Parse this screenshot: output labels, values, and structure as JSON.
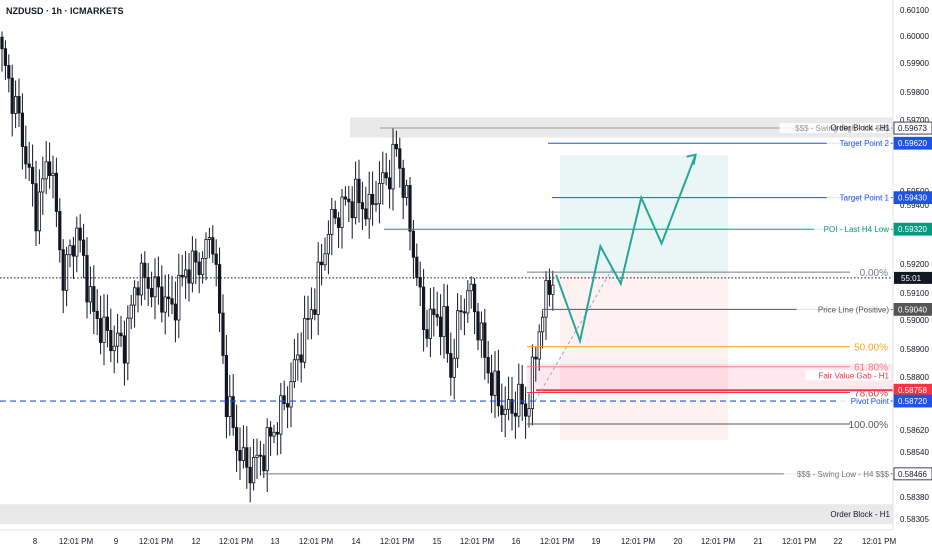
{
  "header": {
    "title": "NZDUSD · 1h · ICMARKETS"
  },
  "chart_data": {
    "type": "candlestick",
    "symbol": "NZDUSD",
    "timeframe": "1h",
    "broker": "ICMARKETS",
    "ylim": [
      0.5827,
      0.6012
    ],
    "y_ticks": [
      "0.60100",
      "0.60000",
      "0.59900",
      "0.59800",
      "0.59700",
      "0.59500",
      "0.59400",
      "0.59200",
      "0.59100",
      "0.59000",
      "0.58900",
      "0.58800",
      "0.58620",
      "0.58540",
      "0.58380",
      "0.58305"
    ],
    "x_ticks": [
      "8",
      "12:01 PM",
      "9",
      "12:01 PM",
      "12",
      "12:01 PM",
      "13",
      "12:01 PM",
      "14",
      "12:01 PM",
      "15",
      "12:01 PM",
      "16",
      "12:01 PM",
      "19",
      "12:01 PM",
      "20",
      "12:01 PM",
      "21",
      "12:01 PM",
      "22",
      "12:01 PM"
    ],
    "x_tick_index": [
      0,
      12,
      24,
      36,
      48,
      60,
      72,
      84,
      96,
      108,
      120,
      132,
      144,
      156,
      168,
      180,
      192,
      204,
      216,
      228,
      240,
      252
    ],
    "price_waypoints": [
      [
        0,
        0.5992
      ],
      [
        5,
        0.597
      ],
      [
        10,
        0.5938
      ],
      [
        14,
        0.5958
      ],
      [
        18,
        0.5915
      ],
      [
        22,
        0.5932
      ],
      [
        27,
        0.5902
      ],
      [
        32,
        0.5893
      ],
      [
        36,
        0.5892
      ],
      [
        40,
        0.5916
      ],
      [
        46,
        0.591
      ],
      [
        50,
        0.5904
      ],
      [
        54,
        0.5918
      ],
      [
        58,
        0.592
      ],
      [
        62,
        0.593
      ],
      [
        66,
        0.5873
      ],
      [
        69,
        0.5857
      ],
      [
        72,
        0.5848
      ],
      [
        76,
        0.5852
      ],
      [
        80,
        0.5862
      ],
      [
        84,
        0.5874
      ],
      [
        88,
        0.5892
      ],
      [
        92,
        0.5908
      ],
      [
        96,
        0.5932
      ],
      [
        100,
        0.594
      ],
      [
        104,
        0.5943
      ],
      [
        108,
        0.5938
      ],
      [
        110,
        0.5945
      ],
      [
        114,
        0.5952
      ],
      [
        116,
        0.596
      ],
      [
        118,
        0.5948
      ],
      [
        121,
        0.5925
      ],
      [
        124,
        0.5898
      ],
      [
        128,
        0.5902
      ],
      [
        130,
        0.5898
      ],
      [
        132,
        0.5882
      ],
      [
        135,
        0.5905
      ],
      [
        138,
        0.591
      ],
      [
        141,
        0.5893
      ],
      [
        144,
        0.5878
      ],
      [
        147,
        0.587
      ],
      [
        149,
        0.5868
      ],
      [
        152,
        0.5873
      ],
      [
        154,
        0.5868
      ],
      [
        156,
        0.588
      ],
      [
        158,
        0.5898
      ],
      [
        160,
        0.5908
      ],
      [
        162,
        0.5916
      ]
    ],
    "levels": [
      {
        "name": "$$$ - Swing High - H4 $$$",
        "price": 0.59673,
        "label": "0.59673",
        "color": "#999999"
      },
      {
        "name": "Target Point 2",
        "price": 0.5962,
        "label": "0.59620",
        "color": "#1e53e5"
      },
      {
        "name": "Target Point 1",
        "price": 0.5943,
        "label": "0.59430",
        "color": "#1e53e5"
      },
      {
        "name": "POI - Last H4 Low",
        "price": 0.5932,
        "label": "0.59320",
        "color": "#089981"
      },
      {
        "name": "Price Line (Positive)",
        "price": 0.5904,
        "label": "0.59040",
        "color": "#555555"
      },
      {
        "name": "Fair Value Gab - H1",
        "price": 0.58758,
        "label": "0.58758",
        "color": "#f23645"
      },
      {
        "name": "Pivot Point",
        "price": 0.5872,
        "label": "0.58720",
        "color": "#1e53e5"
      },
      {
        "name": "$$$ - Swing Low - H4 $$$",
        "price": 0.58466,
        "label": "0.58466",
        "color": "#777777"
      }
    ],
    "current_price_label": "55:01",
    "current_price": 0.5915,
    "fib_levels": [
      {
        "label": "0.00%",
        "price": 0.5917,
        "color": "#787b86"
      },
      {
        "label": "50.00%",
        "price": 0.5891,
        "color": "#f5a623"
      },
      {
        "label": "61.80%",
        "price": 0.5884,
        "color": "#f77c80"
      },
      {
        "label": "78.60%",
        "price": 0.5875,
        "color": "#f23645"
      },
      {
        "label": "100.00%",
        "price": 0.5864,
        "color": "#555555"
      }
    ],
    "order_blocks": [
      {
        "label": "Order Block - H1",
        "top": 0.5971,
        "bottom": 0.5964
      },
      {
        "label": "Order Block - H1",
        "top": 0.5836,
        "bottom": 0.5829
      }
    ],
    "projection_path": [
      [
        163,
        0.5916
      ],
      [
        170,
        0.5893
      ],
      [
        176,
        0.5926
      ],
      [
        182,
        0.5913
      ],
      [
        188,
        0.5943
      ],
      [
        194,
        0.5927
      ],
      [
        204,
        0.5958
      ]
    ],
    "colors": {
      "up": "#131722",
      "down": "#131722",
      "teal": "#26a69a",
      "accent": "#1e53e5",
      "red": "#f23645"
    }
  }
}
